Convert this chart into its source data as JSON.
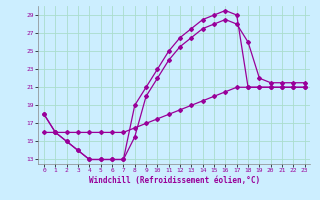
{
  "xlabel": "Windchill (Refroidissement éolien,°C)",
  "bg_color": "#cceeff",
  "grid_color": "#aaddcc",
  "line_color": "#990099",
  "xlim": [
    -0.5,
    23.5
  ],
  "ylim": [
    12.5,
    30.0
  ],
  "xticks": [
    0,
    1,
    2,
    3,
    4,
    5,
    6,
    7,
    8,
    9,
    10,
    11,
    12,
    13,
    14,
    15,
    16,
    17,
    18,
    19,
    20,
    21,
    22,
    23
  ],
  "yticks": [
    13,
    15,
    17,
    19,
    21,
    23,
    25,
    27,
    29
  ],
  "line1_x": [
    0,
    1,
    2,
    3,
    4,
    5,
    6,
    7,
    8,
    9,
    10,
    11,
    12,
    13,
    14,
    15,
    16,
    17,
    18,
    19,
    20,
    21,
    22,
    23
  ],
  "line1_y": [
    18,
    16,
    15,
    14,
    13,
    13,
    13,
    13,
    19,
    21,
    23,
    25,
    26.5,
    27.5,
    28.5,
    29,
    29.5,
    29,
    21,
    21,
    21,
    21,
    21,
    21
  ],
  "line2_x": [
    0,
    1,
    2,
    3,
    4,
    5,
    6,
    7,
    8,
    9,
    10,
    11,
    12,
    13,
    14,
    15,
    16,
    17,
    18,
    19,
    20,
    21,
    22,
    23
  ],
  "line2_y": [
    18,
    16,
    15,
    14,
    13,
    13,
    13,
    13,
    15.5,
    20,
    22,
    24,
    25.5,
    26.5,
    27.5,
    28,
    28.5,
    28,
    26,
    22,
    21.5,
    21.5,
    21.5,
    21.5
  ],
  "line3_x": [
    0,
    1,
    2,
    3,
    4,
    5,
    6,
    7,
    8,
    9,
    10,
    11,
    12,
    13,
    14,
    15,
    16,
    17,
    18,
    19,
    20,
    21,
    22,
    23
  ],
  "line3_y": [
    16,
    16,
    16,
    16,
    16,
    16,
    16,
    16,
    16.5,
    17,
    17.5,
    18,
    18.5,
    19,
    19.5,
    20,
    20.5,
    21,
    21,
    21,
    21,
    21,
    21,
    21
  ],
  "xlabel_fontsize": 5.5,
  "tick_fontsize": 4.5,
  "linewidth": 0.9,
  "markersize": 2.0
}
